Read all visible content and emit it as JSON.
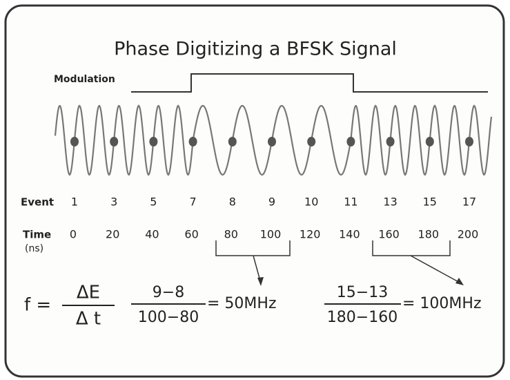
{
  "title": "Phase Digitizing a BFSK Signal",
  "modulation_label": "Modulation",
  "event_label": "Event",
  "time_label": "Time",
  "time_unit": "(ns)",
  "events": [
    1,
    3,
    5,
    7,
    8,
    9,
    10,
    11,
    13,
    15,
    17
  ],
  "times": [
    0,
    20,
    40,
    60,
    80,
    100,
    120,
    140,
    160,
    180,
    200
  ],
  "formula": {
    "lhs": "f =",
    "numerator": "ΔE",
    "denominator": "Δ t"
  },
  "example_1": {
    "numerator": "9−8",
    "denominator": "100−80",
    "result": "= 50MHz"
  },
  "example_2": {
    "numerator": "15−13",
    "denominator": "180−160",
    "result": "= 100MHz"
  }
}
